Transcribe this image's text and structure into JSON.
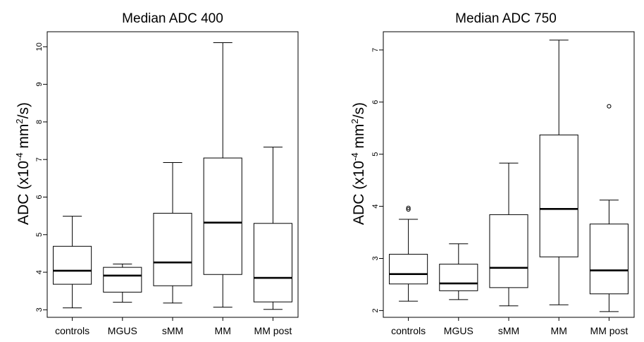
{
  "chart_data": [
    {
      "type": "box",
      "title": "Median ADC 400",
      "ylabel_main": "ADC (x10",
      "ylabel_exp1": "-4",
      "ylabel_mid": " mm",
      "ylabel_exp2": "2",
      "ylabel_end": "/s)",
      "categories": [
        "controls",
        "MGUS",
        "sMM",
        "MM",
        "MM post"
      ],
      "yticks": [
        "3",
        "4",
        "5",
        "6",
        "7",
        "8",
        "9",
        "10"
      ],
      "ylim": [
        2.8,
        10.4
      ],
      "boxes": [
        {
          "min": 3.05,
          "q1": 3.68,
          "median": 4.04,
          "q3": 4.69,
          "max": 5.49,
          "outliers": []
        },
        {
          "min": 3.2,
          "q1": 3.47,
          "median": 3.91,
          "q3": 4.13,
          "max": 4.22,
          "outliers": []
        },
        {
          "min": 3.18,
          "q1": 3.64,
          "median": 4.26,
          "q3": 5.57,
          "max": 6.92,
          "outliers": []
        },
        {
          "min": 3.07,
          "q1": 3.94,
          "median": 5.32,
          "q3": 7.04,
          "max": 10.11,
          "outliers": []
        },
        {
          "min": 3.01,
          "q1": 3.21,
          "median": 3.85,
          "q3": 5.3,
          "max": 7.33,
          "outliers": []
        }
      ]
    },
    {
      "type": "box",
      "title": "Median ADC 750",
      "ylabel_main": "ADC (x10",
      "ylabel_exp1": "-4",
      "ylabel_mid": " mm",
      "ylabel_exp2": "2",
      "ylabel_end": "/s)",
      "categories": [
        "controls",
        "MGUS",
        "sMM",
        "MM",
        "MM post"
      ],
      "yticks": [
        "2",
        "3",
        "4",
        "5",
        "6",
        "7"
      ],
      "ylim": [
        1.87,
        7.35
      ],
      "boxes": [
        {
          "min": 2.18,
          "q1": 2.51,
          "median": 2.7,
          "q3": 3.08,
          "max": 3.75,
          "outliers": [
            3.94,
            3.97
          ]
        },
        {
          "min": 2.21,
          "q1": 2.38,
          "median": 2.52,
          "q3": 2.89,
          "max": 3.28,
          "outliers": []
        },
        {
          "min": 2.09,
          "q1": 2.44,
          "median": 2.82,
          "q3": 3.84,
          "max": 4.83,
          "outliers": []
        },
        {
          "min": 2.11,
          "q1": 3.03,
          "median": 3.95,
          "q3": 5.37,
          "max": 7.19,
          "outliers": []
        },
        {
          "min": 1.98,
          "q1": 2.32,
          "median": 2.77,
          "q3": 3.66,
          "max": 4.12,
          "outliers": [
            5.92
          ]
        }
      ]
    }
  ]
}
